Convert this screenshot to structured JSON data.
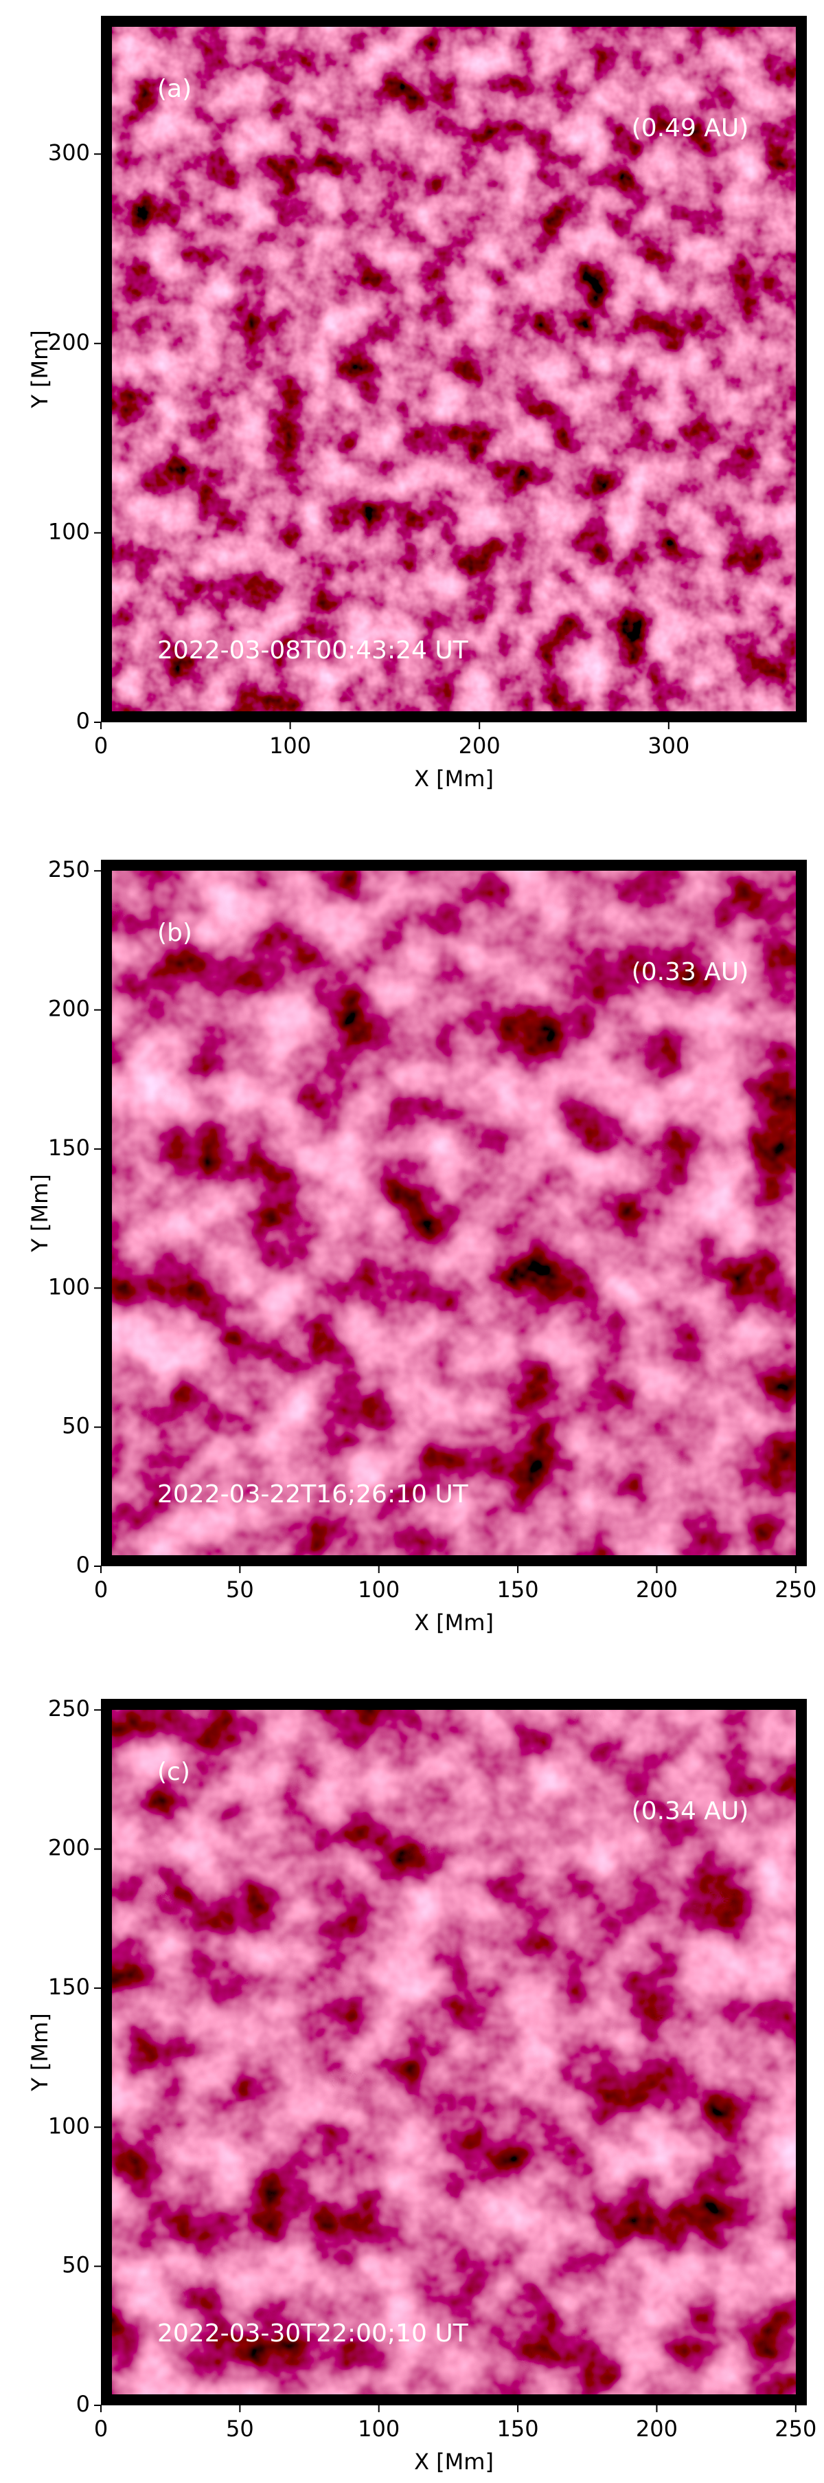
{
  "chart_data": [
    {
      "type": "image",
      "panel_label": "(a)",
      "distance": "(0.49 AU)",
      "timestamp": "2022-03-08T00:43:24 UT",
      "xlabel": "X [Mm]",
      "ylabel": "Y [Mm]",
      "xlim": [
        0,
        373
      ],
      "ylim": [
        0,
        373
      ],
      "xticks": [
        0,
        100,
        200,
        300
      ],
      "yticks": [
        0,
        100,
        200,
        300
      ]
    },
    {
      "type": "image",
      "panel_label": "(b)",
      "distance": "(0.33 AU)",
      "timestamp": "2022-03-22T16;26:10 UT",
      "xlabel": "X [Mm]",
      "ylabel": "Y [Mm]",
      "xlim": [
        0,
        254
      ],
      "ylim": [
        0,
        254
      ],
      "xticks": [
        0,
        50,
        100,
        150,
        200,
        250
      ],
      "yticks": [
        0,
        50,
        100,
        150,
        200,
        250
      ]
    },
    {
      "type": "image",
      "panel_label": "(c)",
      "distance": "(0.34 AU)",
      "timestamp": "2022-03-30T22:00;10 UT",
      "xlabel": "X [Mm]",
      "ylabel": "Y [Mm]",
      "xlim": [
        0,
        254
      ],
      "ylim": [
        0,
        254
      ],
      "xticks": [
        0,
        50,
        100,
        150,
        200,
        250
      ],
      "yticks": [
        0,
        50,
        100,
        150,
        200,
        250
      ]
    }
  ]
}
